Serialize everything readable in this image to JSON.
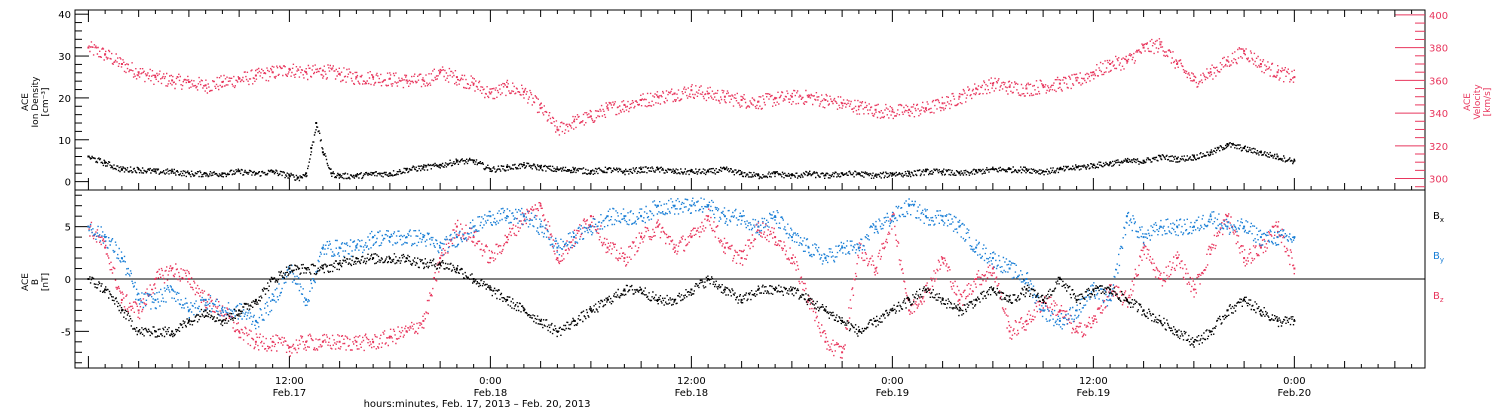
{
  "colors": {
    "background": "#ffffff",
    "axis": "#000000",
    "density": "#000000",
    "velocity": "#e8365d",
    "bx": "#000000",
    "by": "#1a7fd6",
    "bz": "#e8365d"
  },
  "xaxis": {
    "title": "hours:minutes, Feb. 17, 2013 – Feb. 20, 2013",
    "ticks": [
      {
        "t": 12,
        "l1": "12:00",
        "l2": "Feb.17"
      },
      {
        "t": 24,
        "l1": "0:00",
        "l2": "Feb.18"
      },
      {
        "t": 36,
        "l1": "12:00",
        "l2": "Feb.18"
      },
      {
        "t": 48,
        "l1": "0:00",
        "l2": "Feb.19"
      },
      {
        "t": 60,
        "l1": "12:00",
        "l2": "Feb.19"
      },
      {
        "t": 72,
        "l1": "0:00",
        "l2": "Feb.20"
      }
    ]
  },
  "chart_data": [
    {
      "type": "scatter",
      "panel": "top",
      "xrange_hours": [
        -0.8,
        79.8
      ],
      "left_axis": {
        "label_lines": [
          "ACE",
          "Ion Density",
          "[cm⁻³]"
        ],
        "ylim": [
          -2,
          41
        ],
        "ticks": [
          0,
          10,
          20,
          30,
          40
        ]
      },
      "right_axis": {
        "label_lines": [
          "ACE",
          "Velocity",
          "[km/s]"
        ],
        "ylim": [
          293,
          403
        ],
        "ticks": [
          300,
          320,
          340,
          360,
          380,
          400
        ]
      },
      "series": [
        {
          "axis": "left",
          "color_key": "density",
          "x": [
            0,
            1,
            2,
            3,
            4,
            5,
            6,
            7,
            8,
            9,
            10,
            11,
            12,
            12.5,
            13,
            13.3,
            13.6,
            14,
            14.5,
            15,
            16,
            17,
            18,
            19,
            20,
            21,
            22,
            23,
            24,
            25,
            26,
            27,
            28,
            29,
            30,
            31,
            32,
            33,
            34,
            35,
            36,
            37,
            38,
            39,
            40,
            41,
            42,
            43,
            44,
            45,
            46,
            47,
            48,
            49,
            50,
            51,
            52,
            53,
            54,
            55,
            56,
            57,
            58,
            59,
            60,
            61,
            62,
            63,
            64,
            65,
            66,
            67,
            68,
            69,
            70,
            71,
            72
          ],
          "y": [
            6,
            4.5,
            3,
            3,
            2.5,
            2.5,
            2,
            2,
            2,
            2.5,
            2,
            2.5,
            1.5,
            1,
            2,
            8,
            14,
            7,
            2,
            1.5,
            1.5,
            2,
            2,
            3,
            3.5,
            4,
            5,
            5,
            3,
            3.5,
            4,
            3.5,
            3,
            3,
            2.5,
            3,
            2.5,
            3,
            3,
            2.5,
            2.5,
            2.5,
            3,
            2,
            1.5,
            2,
            1.5,
            2,
            1.5,
            2,
            2,
            1.5,
            2,
            2,
            2.5,
            2.5,
            2,
            2.5,
            3,
            3,
            3,
            2.5,
            3,
            3.5,
            4,
            4.5,
            5,
            5,
            6,
            5.5,
            6,
            7,
            9,
            8,
            7,
            6,
            5
          ]
        },
        {
          "axis": "right",
          "color_key": "velocity",
          "x": [
            0,
            1,
            2,
            3,
            4,
            5,
            6,
            7,
            8,
            9,
            10,
            11,
            12,
            13,
            14,
            15,
            16,
            17,
            18,
            19,
            20,
            21,
            22,
            23,
            24,
            25,
            26,
            27,
            28,
            29,
            30,
            31,
            32,
            33,
            34,
            35,
            36,
            37,
            38,
            39,
            40,
            41,
            42,
            43,
            44,
            45,
            46,
            47,
            48,
            49,
            50,
            51,
            52,
            53,
            54,
            55,
            56,
            57,
            58,
            59,
            60,
            61,
            62,
            63,
            64,
            65,
            66,
            67,
            68,
            69,
            70,
            71,
            72
          ],
          "y": [
            380,
            376,
            370,
            365,
            362,
            360,
            359,
            357,
            359,
            361,
            363,
            365,
            367,
            365,
            366,
            364,
            362,
            362,
            361,
            360,
            360,
            365,
            362,
            358,
            352,
            356,
            353,
            343,
            330,
            335,
            338,
            343,
            345,
            348,
            350,
            352,
            354,
            352,
            350,
            348,
            347,
            349,
            350,
            350,
            348,
            346,
            344,
            342,
            341,
            342,
            343,
            346,
            350,
            355,
            358,
            356,
            355,
            357,
            358,
            360,
            365,
            370,
            372,
            380,
            382,
            370,
            360,
            365,
            372,
            378,
            370,
            365,
            362
          ]
        }
      ]
    },
    {
      "type": "scatter",
      "panel": "bottom",
      "xrange_hours": [
        -0.8,
        79.8
      ],
      "left_axis": {
        "label_lines": [
          "ACE",
          "B",
          "[nT]"
        ],
        "ylim": [
          -8.5,
          8.5
        ],
        "ticks": [
          -5,
          0,
          5
        ]
      },
      "series": [
        {
          "name": "Bx",
          "color_key": "bx",
          "x": [
            0,
            1,
            2,
            3,
            4,
            5,
            6,
            7,
            8,
            9,
            10,
            11,
            12,
            13,
            14,
            15,
            16,
            17,
            18,
            19,
            20,
            21,
            22,
            23,
            24,
            25,
            26,
            27,
            28,
            29,
            30,
            31,
            32,
            33,
            34,
            35,
            36,
            37,
            38,
            39,
            40,
            41,
            42,
            43,
            44,
            45,
            46,
            47,
            48,
            49,
            50,
            51,
            52,
            53,
            54,
            55,
            56,
            57,
            58,
            59,
            60,
            61,
            62,
            63,
            64,
            65,
            66,
            67,
            68,
            69,
            70,
            71,
            72
          ],
          "y": [
            0,
            -1,
            -3,
            -5,
            -5,
            -5,
            -4,
            -3,
            -4,
            -3,
            -2,
            0,
            1,
            1,
            1,
            1.5,
            2,
            2,
            2,
            2,
            1.5,
            1.5,
            1,
            0,
            -1,
            -2,
            -3,
            -4,
            -5,
            -4,
            -3,
            -2,
            -1,
            -1,
            -2,
            -2,
            -1,
            0,
            -1,
            -2,
            -1,
            -1,
            -1,
            -2,
            -3,
            -4,
            -5,
            -4,
            -3,
            -2,
            -1,
            -2,
            -3,
            -2,
            -1,
            -2,
            -1,
            -2,
            0,
            -2,
            -1,
            -1,
            -2,
            -3,
            -4,
            -5,
            -6,
            -5,
            -3,
            -2,
            -3,
            -4,
            -4
          ]
        },
        {
          "name": "By",
          "color_key": "by",
          "x": [
            0,
            1,
            2,
            3,
            4,
            5,
            6,
            7,
            8,
            9,
            10,
            11,
            12,
            13,
            14,
            15,
            16,
            17,
            18,
            19,
            20,
            21,
            22,
            23,
            24,
            25,
            26,
            27,
            28,
            29,
            30,
            31,
            32,
            33,
            34,
            35,
            36,
            37,
            38,
            39,
            40,
            41,
            42,
            43,
            44,
            45,
            46,
            47,
            48,
            49,
            50,
            51,
            52,
            53,
            54,
            55,
            56,
            57,
            58,
            59,
            60,
            61,
            62,
            63,
            64,
            65,
            66,
            67,
            68,
            69,
            70,
            71,
            72
          ],
          "y": [
            5,
            4,
            2,
            -2,
            -2,
            -1,
            -3,
            -2,
            -3,
            -3,
            -4,
            -2,
            1,
            -2,
            3,
            3,
            3,
            4,
            4,
            4,
            4,
            3,
            4,
            5,
            6,
            6,
            6,
            5,
            3,
            4,
            5,
            6,
            6,
            6,
            7,
            7,
            7,
            7,
            6,
            6,
            5,
            6,
            4,
            3,
            2,
            3,
            3,
            5,
            6,
            7,
            6,
            6,
            5,
            3,
            2,
            1,
            0,
            -3,
            -4,
            -3,
            -1,
            -2,
            6,
            4,
            5,
            5,
            5,
            6,
            5,
            5,
            4,
            4,
            4
          ]
        },
        {
          "name": "Bz",
          "color_key": "bz",
          "x": [
            0,
            1,
            2,
            3,
            4,
            5,
            6,
            7,
            8,
            9,
            10,
            11,
            12,
            13,
            14,
            15,
            16,
            17,
            18,
            19,
            20,
            21,
            22,
            23,
            24,
            25,
            26,
            27,
            28,
            29,
            30,
            31,
            32,
            33,
            34,
            35,
            36,
            37,
            38,
            39,
            40,
            41,
            42,
            43,
            44,
            45,
            46,
            47,
            48,
            49,
            50,
            51,
            52,
            53,
            54,
            55,
            56,
            57,
            58,
            59,
            60,
            61,
            62,
            63,
            64,
            65,
            66,
            67,
            68,
            69,
            70,
            71,
            72
          ],
          "y": [
            5,
            3,
            -2,
            -3,
            0,
            1,
            0,
            -2,
            -3,
            -5,
            -6,
            -6,
            -6.5,
            -6,
            -6,
            -6,
            -6,
            -6,
            -5.5,
            -5,
            -4,
            2,
            5,
            4,
            2,
            4,
            6,
            7,
            2,
            4,
            6,
            3,
            2,
            4,
            5,
            3,
            4,
            6,
            3,
            2,
            5,
            4,
            2,
            -2,
            -6,
            -7,
            3,
            1,
            6,
            -3,
            -1,
            2,
            -2,
            0,
            1,
            -5,
            -4,
            -2,
            -3,
            -5,
            -4,
            -1,
            -2,
            3,
            0,
            2,
            -1,
            3,
            6,
            2,
            3,
            5,
            1
          ]
        }
      ],
      "legend": [
        {
          "main": "B",
          "sub": "x",
          "color_key": "bx"
        },
        {
          "main": "B",
          "sub": "y",
          "color_key": "by"
        },
        {
          "main": "B",
          "sub": "z",
          "color_key": "bz"
        }
      ]
    }
  ]
}
